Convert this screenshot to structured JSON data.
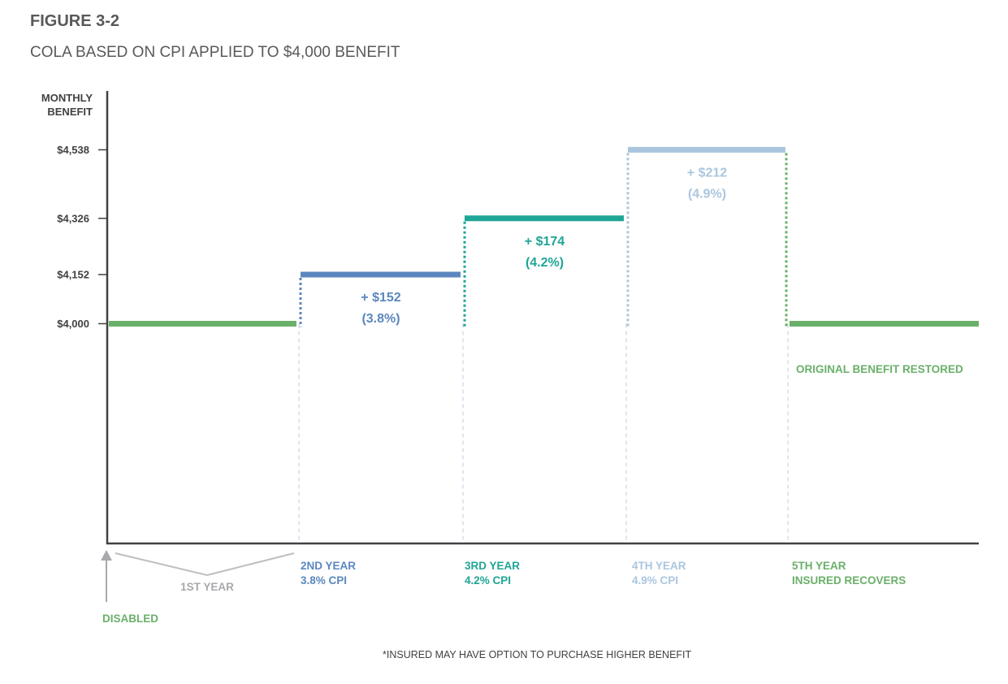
{
  "figure": {
    "label": "FIGURE 3-2",
    "title": "COLA BASED ON CPI APPLIED TO $4,000 BENEFIT",
    "footnote": "*INSURED MAY HAVE OPTION TO PURCHASE HIGHER BENEFIT"
  },
  "chart_data": {
    "type": "step",
    "ylabel": [
      "MONTHLY",
      "BENEFIT"
    ],
    "y_ticks": [
      {
        "value": 4000,
        "label": "$4,000"
      },
      {
        "value": 4152,
        "label": "$4,152"
      },
      {
        "value": 4326,
        "label": "$4,326"
      },
      {
        "value": 4538,
        "label": "$4,538"
      }
    ],
    "ylim": [
      3320,
      4720
    ],
    "segments": [
      {
        "name": "1st year",
        "value": 4000,
        "color": "#6ab06a",
        "label_lines": [
          "1ST YEAR"
        ],
        "label_color": "#a7a9ac"
      },
      {
        "name": "2nd year",
        "value": 4152,
        "color": "#5b87be",
        "label_lines": [
          "2ND YEAR",
          "3.8% CPI"
        ],
        "label_color": "#5b87be",
        "increase": "+ $152",
        "percent": "(3.8%)"
      },
      {
        "name": "3rd year",
        "value": 4326,
        "color": "#1fa595",
        "label_lines": [
          "3RD YEAR",
          "4.2% CPI"
        ],
        "label_color": "#1fa595",
        "increase": "+ $174",
        "percent": "(4.2%)"
      },
      {
        "name": "4th year",
        "value": 4538,
        "color": "#aac6de",
        "label_lines": [
          "4TH YEAR",
          "4.9% CPI"
        ],
        "label_color": "#aac6de",
        "increase": "+ $212",
        "percent": "(4.9%)"
      },
      {
        "name": "5th year",
        "value": 4000,
        "color": "#6ab06a",
        "label_lines": [
          "5TH YEAR",
          "INSURED RECOVERS"
        ],
        "label_color": "#6ab06a"
      }
    ],
    "annotations": {
      "restored": "ORIGINAL BENEFIT RESTORED",
      "restored_color": "#6ab06a",
      "disabled": "DISABLED",
      "disabled_color": "#6ab06a"
    }
  }
}
